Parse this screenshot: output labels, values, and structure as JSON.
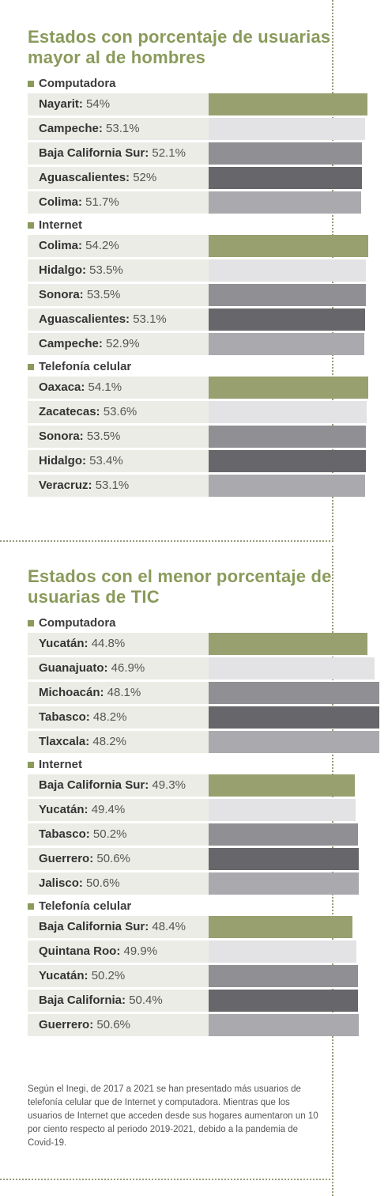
{
  "colors": {
    "accent": "#8a9a5b",
    "bars": [
      "#98a06f",
      "#e3e3e5",
      "#8f8f94",
      "#67676b",
      "#a9a9ae"
    ]
  },
  "footnote": "Según el Inegi, de 2017 a 2021 se han presentado más usuarios de telefonía celular que de Internet y computadora. Mientras que los usuarios de Internet que acceden desde sus hogares aumentaron un 10 por ciento respecto al periodo 2019-2021, debido a la pandemia de Covid-19.",
  "chart_data": [
    {
      "type": "bar",
      "title": "Estados con porcentaje de usuarias mayor al de hombres",
      "groups": [
        {
          "name": "Computadora",
          "items": [
            {
              "label": "Nayarit:",
              "value": 54,
              "text": "54%"
            },
            {
              "label": "Campeche:",
              "value": 53.1,
              "text": "53.1%"
            },
            {
              "label": "Baja California Sur:",
              "value": 52.1,
              "text": "52.1%"
            },
            {
              "label": "Aguascalientes:",
              "value": 52,
              "text": "52%"
            },
            {
              "label": "Colima:",
              "value": 51.7,
              "text": "51.7%"
            }
          ]
        },
        {
          "name": "Internet",
          "items": [
            {
              "label": "Colima:",
              "value": 54.2,
              "text": "54.2%"
            },
            {
              "label": "Hidalgo:",
              "value": 53.5,
              "text": "53.5%"
            },
            {
              "label": "Sonora:",
              "value": 53.5,
              "text": "53.5%"
            },
            {
              "label": "Aguascalientes:",
              "value": 53.1,
              "text": "53.1%"
            },
            {
              "label": "Campeche:",
              "value": 52.9,
              "text": "52.9%"
            }
          ]
        },
        {
          "name": "Telefonía celular",
          "items": [
            {
              "label": "Oaxaca:",
              "value": 54.1,
              "text": "54.1%"
            },
            {
              "label": "Zacatecas:",
              "value": 53.6,
              "text": "53.6%"
            },
            {
              "label": "Sonora:",
              "value": 53.5,
              "text": "53.5%"
            },
            {
              "label": "Hidalgo:",
              "value": 53.4,
              "text": "53.4%"
            },
            {
              "label": "Veracruz:",
              "value": 53.1,
              "text": "53.1%"
            }
          ]
        }
      ]
    },
    {
      "type": "bar",
      "title": "Estados con el menor porcentaje de usuarias de TIC",
      "groups": [
        {
          "name": "Computadora",
          "items": [
            {
              "label": "Yucatán:",
              "value": 44.8,
              "text": "44.8%"
            },
            {
              "label": "Guanajuato:",
              "value": 46.9,
              "text": "46.9%"
            },
            {
              "label": "Michoacán:",
              "value": 48.1,
              "text": "48.1%"
            },
            {
              "label": "Tabasco:",
              "value": 48.2,
              "text": "48.2%"
            },
            {
              "label": "Tlaxcala:",
              "value": 48.2,
              "text": "48.2%"
            }
          ]
        },
        {
          "name": "Internet",
          "items": [
            {
              "label": "Baja California Sur:",
              "value": 49.3,
              "text": "49.3%"
            },
            {
              "label": "Yucatán:",
              "value": 49.4,
              "text": "49.4%"
            },
            {
              "label": "Tabasco:",
              "value": 50.2,
              "text": "50.2%"
            },
            {
              "label": "Guerrero:",
              "value": 50.6,
              "text": "50.6%"
            },
            {
              "label": "Jalisco:",
              "value": 50.6,
              "text": "50.6%"
            }
          ]
        },
        {
          "name": "Telefonía celular",
          "items": [
            {
              "label": "Baja California Sur:",
              "value": 48.4,
              "text": "48.4%"
            },
            {
              "label": "Quintana Roo:",
              "value": 49.9,
              "text": "49.9%"
            },
            {
              "label": "Yucatán:",
              "value": 50.2,
              "text": "50.2%"
            },
            {
              "label": "Baja California:",
              "value": 50.4,
              "text": "50.4%"
            },
            {
              "label": "Guerrero:",
              "value": 50.6,
              "text": "50.6%"
            }
          ]
        }
      ]
    }
  ]
}
